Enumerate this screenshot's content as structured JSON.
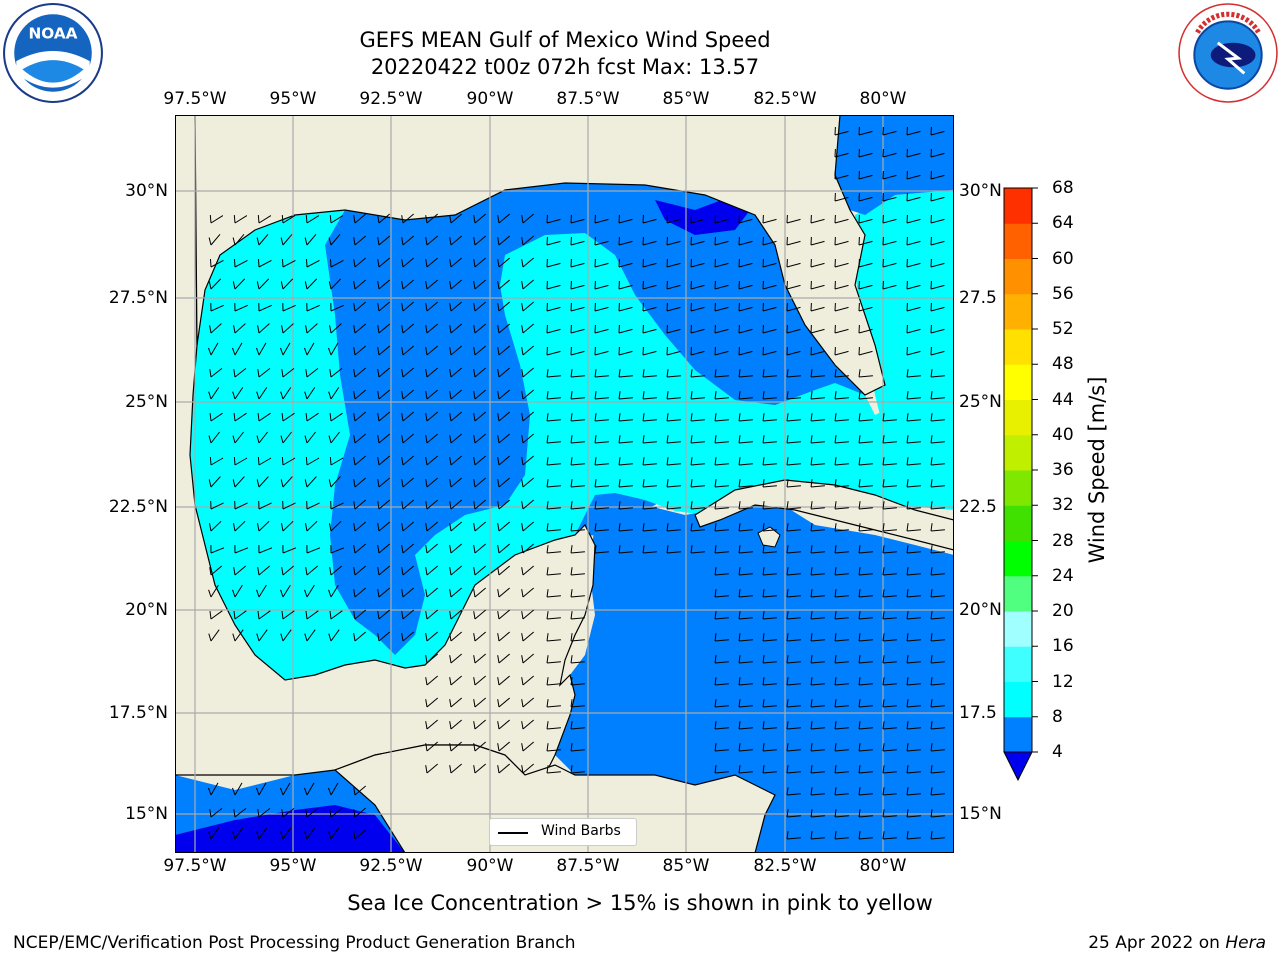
{
  "title": {
    "line1": "GEFS MEAN Gulf of Mexico Wind Speed",
    "line2": "20220422 t00z 072h fcst   Max: 13.57"
  },
  "logos": {
    "left": "noaa-logo",
    "left_text": "NOAA",
    "right": "nws-logo",
    "right_text": "NATIONAL WEATHER SERVICE"
  },
  "map": {
    "projection": "PlateCarree",
    "lon_range": [
      -98,
      -78.2
    ],
    "lat_range": [
      14,
      32
    ],
    "lon_ticks": [
      {
        "value": -97.5,
        "label": "97.5°W"
      },
      {
        "value": -95,
        "label": "95°W"
      },
      {
        "value": -92.5,
        "label": "92.5°W"
      },
      {
        "value": -90,
        "label": "90°W"
      },
      {
        "value": -87.5,
        "label": "87.5°W"
      },
      {
        "value": -85,
        "label": "85°W"
      },
      {
        "value": -82.5,
        "label": "82.5°W"
      },
      {
        "value": -80,
        "label": "80°W"
      }
    ],
    "lat_ticks_left": [
      {
        "value": 30,
        "label": "30°N"
      },
      {
        "value": 27.5,
        "label": "27.5°N"
      },
      {
        "value": 25,
        "label": "25°N"
      },
      {
        "value": 22.5,
        "label": "22.5°N"
      },
      {
        "value": 20,
        "label": "20°N"
      },
      {
        "value": 17.5,
        "label": "17.5°N"
      },
      {
        "value": 15,
        "label": "15°N"
      }
    ],
    "lat_ticks_right": [
      {
        "value": 30,
        "label": "30°N"
      },
      {
        "value": 27.5,
        "label": "27.5"
      },
      {
        "value": 25,
        "label": "25°N"
      },
      {
        "value": 22.5,
        "label": "22.5"
      },
      {
        "value": 20,
        "label": "20°N"
      },
      {
        "value": 17.5,
        "label": "17.5"
      },
      {
        "value": 15,
        "label": "15°N"
      }
    ],
    "gridlines": true,
    "land_color": "#efeddc",
    "legend_label": "Wind Barbs",
    "field": "wind speed",
    "max_value": 13.57
  },
  "colorbar": {
    "title": "Wind Speed [m/s]",
    "levels": [
      4,
      8,
      12,
      16,
      20,
      24,
      28,
      32,
      36,
      40,
      44,
      48,
      52,
      56,
      60,
      64,
      68
    ],
    "colors": [
      "#0080ff",
      "#00ffff",
      "#40ffff",
      "#a0ffff",
      "#50ff80",
      "#00ff00",
      "#40e000",
      "#80e800",
      "#c0f000",
      "#e8f000",
      "#ffff00",
      "#ffe000",
      "#ffb000",
      "#ff9000",
      "#ff6000",
      "#ff3000"
    ],
    "extend_min_color": "#0000ee",
    "orientation": "vertical"
  },
  "notes": {
    "sea_ice": "Sea Ice Concentration > 15% is shown in pink to yellow",
    "footer_left": "NCEP/EMC/Verification Post Processing Product Generation Branch",
    "footer_right_prefix": "25 Apr 2022 on ",
    "footer_right_machine": "Hera"
  }
}
